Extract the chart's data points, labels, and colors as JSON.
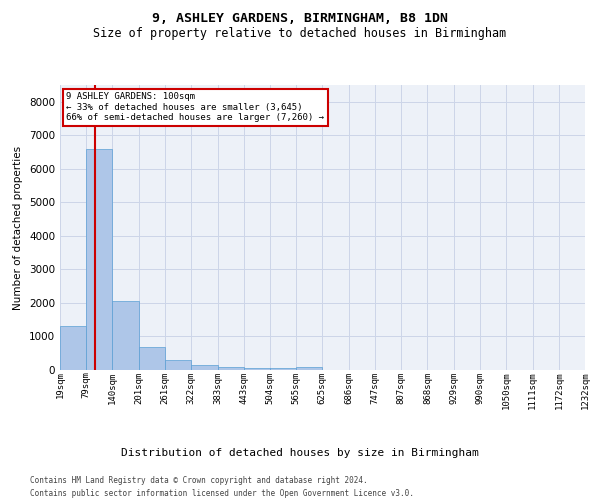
{
  "title1": "9, ASHLEY GARDENS, BIRMINGHAM, B8 1DN",
  "title2": "Size of property relative to detached houses in Birmingham",
  "xlabel": "Distribution of detached houses by size in Birmingham",
  "ylabel": "Number of detached properties",
  "footer1": "Contains HM Land Registry data © Crown copyright and database right 2024.",
  "footer2": "Contains public sector information licensed under the Open Government Licence v3.0.",
  "annotation_line1": "9 ASHLEY GARDENS: 100sqm",
  "annotation_line2": "← 33% of detached houses are smaller (3,645)",
  "annotation_line3": "66% of semi-detached houses are larger (7,260) →",
  "property_size": 100,
  "bin_edges": [
    19,
    79,
    140,
    201,
    261,
    322,
    383,
    443,
    504,
    565,
    625,
    686,
    747,
    807,
    868,
    929,
    990,
    1050,
    1111,
    1172,
    1232
  ],
  "bar_heights": [
    1300,
    6600,
    2050,
    680,
    290,
    150,
    90,
    70,
    50,
    90,
    0,
    0,
    0,
    0,
    0,
    0,
    0,
    0,
    0,
    0
  ],
  "bar_color": "#aec6e8",
  "bar_edge_color": "#5a9fd4",
  "vline_color": "#cc0000",
  "annotation_border_color": "#cc0000",
  "ylim_max": 8500,
  "yticks": [
    0,
    1000,
    2000,
    3000,
    4000,
    5000,
    6000,
    7000,
    8000
  ],
  "grid_color": "#ccd5e8",
  "bg_color": "#edf1f8",
  "title1_fontsize": 9.5,
  "title2_fontsize": 8.5,
  "tick_fontsize": 6.5,
  "ylabel_fontsize": 7.5,
  "xlabel_fontsize": 8,
  "ann_fontsize": 6.5,
  "footer_fontsize": 5.5
}
